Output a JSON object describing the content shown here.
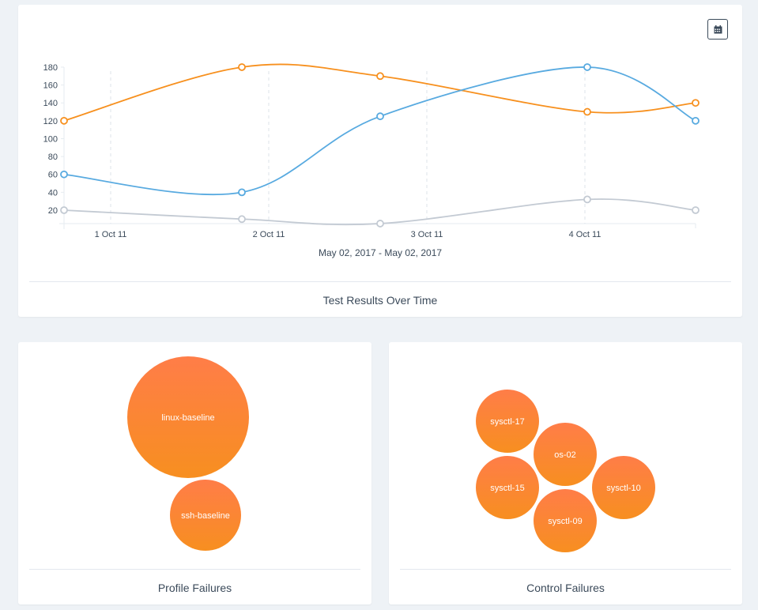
{
  "chart_data": [
    {
      "type": "line",
      "title": "Test Results Over Time",
      "xlabel": "May 02, 2017 - May 02, 2017",
      "ylabel": "",
      "x_ticks": [
        {
          "x": 1,
          "label": "1 Oct 11"
        },
        {
          "x": 2,
          "label": "2 Oct 11"
        },
        {
          "x": 3,
          "label": "3 Oct 11"
        },
        {
          "x": 4,
          "label": "4 Oct 11"
        }
      ],
      "xlim": [
        0.705,
        4.7
      ],
      "y_ticks": [
        20,
        40,
        60,
        80,
        100,
        120,
        140,
        160,
        180
      ],
      "ylim": [
        5,
        185
      ],
      "x": [
        0.705,
        1.83,
        2.705,
        4.015,
        4.7
      ],
      "series": [
        {
          "name": "orange",
          "color": "#f7901e",
          "values": [
            120,
            180,
            170,
            130,
            140
          ]
        },
        {
          "name": "blue",
          "color": "#58aae0",
          "values": [
            60,
            40,
            125,
            180,
            120
          ]
        },
        {
          "name": "gray",
          "color": "#c3cad3",
          "values": [
            20,
            10,
            5,
            32,
            20
          ]
        }
      ],
      "grid": "vertical dashed"
    },
    {
      "type": "bubble",
      "title": "Profile Failures",
      "bubbles": [
        {
          "label": "linux-baseline",
          "size": 77
        },
        {
          "label": "ssh-baseline",
          "size": 45
        }
      ]
    },
    {
      "type": "bubble",
      "title": "Control Failures",
      "bubbles": [
        {
          "label": "sysctl-17",
          "size": 40
        },
        {
          "label": "os-02",
          "size": 40
        },
        {
          "label": "sysctl-15",
          "size": 40
        },
        {
          "label": "sysctl-10",
          "size": 40
        },
        {
          "label": "sysctl-09",
          "size": 40
        }
      ]
    }
  ],
  "toolbar": {
    "calendar_icon": "calendar-icon"
  },
  "colors": {
    "bubble_top": "#ff7d48",
    "bubble_bottom": "#f78f20",
    "background": "#eef2f6"
  }
}
